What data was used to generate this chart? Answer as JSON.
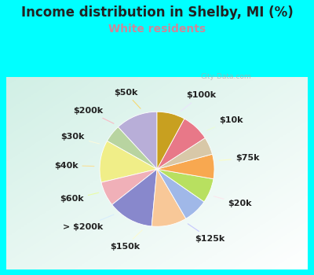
{
  "title": "Income distribution in Shelby, MI (%)",
  "subtitle": "White residents",
  "outer_bg": "#00ffff",
  "panel_bg_colors": [
    "#d0ede0",
    "#e8f5ee",
    "#f0faf5",
    "#ffffff"
  ],
  "title_color": "#222222",
  "subtitle_color": "#cc8899",
  "labels": [
    "$100k",
    "$10k",
    "$75k",
    "$20k",
    "$125k",
    "$150k",
    "> $200k",
    "$60k",
    "$40k",
    "$30k",
    "$200k",
    "$50k"
  ],
  "values": [
    12,
    5,
    12,
    7,
    13,
    10,
    7,
    7,
    7,
    5,
    8,
    8
  ],
  "colors": [
    "#b8aed8",
    "#b8d4a0",
    "#f0ee88",
    "#f0b0b8",
    "#8888cc",
    "#f8c898",
    "#a0b8e8",
    "#b8e060",
    "#f8a850",
    "#d8c8a8",
    "#e87888",
    "#c8a020"
  ],
  "title_fontsize": 12,
  "subtitle_fontsize": 10,
  "label_fontsize": 8,
  "startangle": 90
}
